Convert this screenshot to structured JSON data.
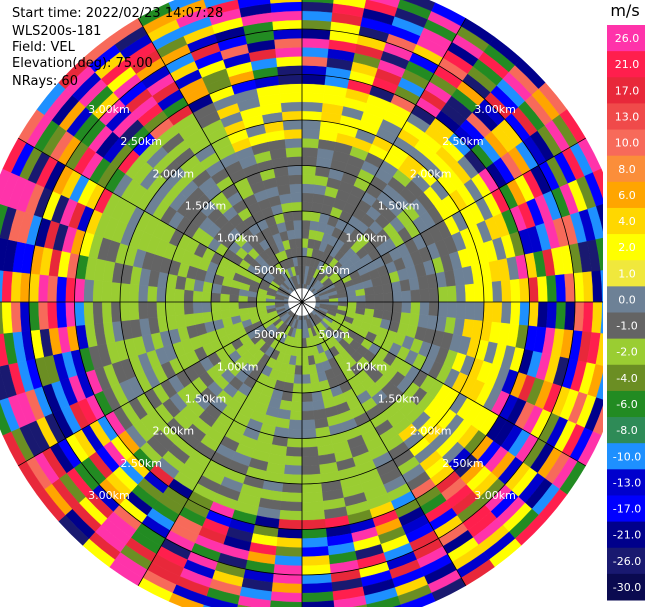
{
  "header": {
    "start_time": "Start time: 2022/02/23 14:07:28",
    "instrument": "WLS200s-181",
    "field": "Field: VEL",
    "elevation": "Elevation(deg): 75.00",
    "nrays": "NRays: 60"
  },
  "chart_data": {
    "type": "heatmap",
    "projection": "polar-ppi",
    "field": "VEL",
    "units": "m/s",
    "n_rays": 60,
    "range_ring_labels": [
      "500m",
      "1.00km",
      "1.50km",
      "2.00km",
      "2.50km",
      "3.00km"
    ],
    "range_rings_km": [
      0.5,
      1.0,
      1.5,
      2.0,
      2.5,
      3.0
    ],
    "max_range_km": 3.6,
    "radials": 12,
    "colorbar": {
      "title": "m/s",
      "tick_labels": [
        "26.0",
        "21.0",
        "17.0",
        "13.0",
        "10.0",
        "8.0",
        "6.0",
        "4.0",
        "2.0",
        "1.0",
        "0.0",
        "-1.0",
        "-2.0",
        "-4.0",
        "-6.0",
        "-8.0",
        "-10.0",
        "-13.0",
        "-17.0",
        "-21.0",
        "-26.0",
        "-30.0"
      ],
      "colors": [
        "#ff33aa",
        "#ff1f4d",
        "#e8283a",
        "#f04a4a",
        "#f76a5a",
        "#fb8e3a",
        "#ffa500",
        "#ffd700",
        "#ffff00",
        "#f0e83c",
        "#6d8196",
        "#646464",
        "#9acd32",
        "#6b8e23",
        "#228b22",
        "#2e8b57",
        "#1e90ff",
        "#0000cd",
        "#0000ff",
        "#00008b",
        "#191970",
        "#0a0a50"
      ]
    },
    "interior_colors": {
      "gray": "#646464",
      "slate": "#6d8196",
      "green": "#9acd32"
    }
  }
}
